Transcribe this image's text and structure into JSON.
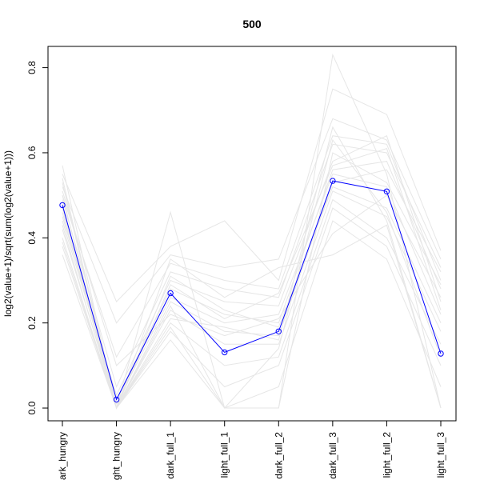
{
  "chart_data": {
    "type": "line",
    "title": "500",
    "xlabel": "",
    "ylabel": "log2(value+1)/sqrt(sum(log2(value+1)))",
    "categories": [
      "dark_hungry",
      "light_hungry",
      "dark_full_1",
      "light_full_1",
      "dark_full_2",
      "dark_full_3",
      "light_full_2",
      "light_full_3"
    ],
    "ylim": [
      -0.03,
      0.85
    ],
    "yticks": [
      "0.0",
      "0.2",
      "0.4",
      "0.6",
      "0.8"
    ],
    "grid": false,
    "highlight_series": {
      "color": "#0000ff",
      "marker": "open-circle",
      "values": [
        0.477,
        0.02,
        0.27,
        0.131,
        0.18,
        0.534,
        0.509,
        0.128
      ]
    },
    "background_series": {
      "color": "#e6e6e6",
      "lines": [
        [
          0.57,
          0.0,
          0.46,
          0.0,
          0.0,
          0.83,
          0.55,
          0.0
        ],
        [
          0.55,
          0.25,
          0.38,
          0.44,
          0.3,
          0.75,
          0.69,
          0.37
        ],
        [
          0.52,
          0.2,
          0.36,
          0.33,
          0.35,
          0.68,
          0.63,
          0.35
        ],
        [
          0.5,
          0.12,
          0.34,
          0.3,
          0.28,
          0.64,
          0.62,
          0.3
        ],
        [
          0.49,
          0.05,
          0.32,
          0.28,
          0.26,
          0.62,
          0.6,
          0.33
        ],
        [
          0.45,
          0.03,
          0.3,
          0.25,
          0.24,
          0.58,
          0.64,
          0.25
        ],
        [
          0.44,
          0.02,
          0.28,
          0.22,
          0.2,
          0.56,
          0.58,
          0.28
        ],
        [
          0.42,
          0.01,
          0.26,
          0.2,
          0.22,
          0.55,
          0.52,
          0.22
        ],
        [
          0.4,
          0.0,
          0.25,
          0.18,
          0.17,
          0.53,
          0.56,
          0.32
        ],
        [
          0.38,
          0.0,
          0.23,
          0.15,
          0.15,
          0.51,
          0.45,
          0.18
        ],
        [
          0.36,
          0.0,
          0.2,
          0.1,
          0.12,
          0.49,
          0.4,
          0.15
        ],
        [
          0.48,
          0.0,
          0.18,
          0.05,
          0.1,
          0.47,
          0.38,
          0.1
        ],
        [
          0.53,
          0.0,
          0.16,
          0.0,
          0.05,
          0.44,
          0.35,
          0.05
        ],
        [
          0.51,
          0.1,
          0.22,
          0.17,
          0.21,
          0.41,
          0.5,
          0.26
        ],
        [
          0.47,
          0.0,
          0.31,
          0.23,
          0.19,
          0.52,
          0.47,
          0.2
        ],
        [
          0.54,
          0.0,
          0.35,
          0.26,
          0.33,
          0.36,
          0.43,
          0.0
        ],
        [
          0.46,
          0.0,
          0.19,
          0.0,
          0.0,
          0.6,
          0.53,
          0.29
        ],
        [
          0.39,
          0.0,
          0.21,
          0.19,
          0.16,
          0.66,
          0.44,
          0.0
        ],
        [
          0.43,
          0.0,
          0.29,
          0.21,
          0.27,
          0.57,
          0.61,
          0.23
        ],
        [
          0.5,
          0.0,
          0.24,
          0.0,
          0.14,
          0.63,
          0.46,
          0.12
        ]
      ]
    }
  }
}
